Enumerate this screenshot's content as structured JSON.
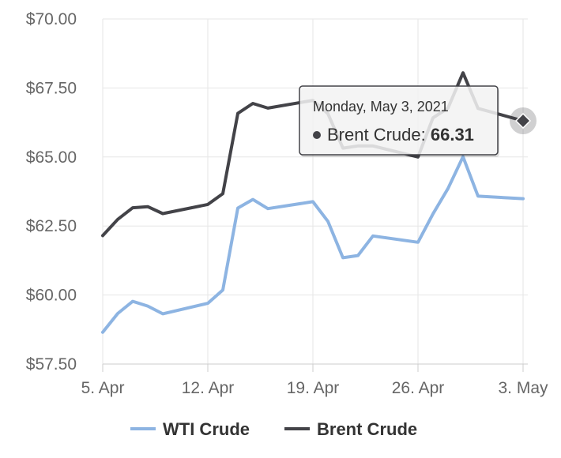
{
  "chart_data": {
    "type": "line",
    "x": [
      "2021-04-05",
      "2021-04-06",
      "2021-04-07",
      "2021-04-08",
      "2021-04-09",
      "2021-04-12",
      "2021-04-13",
      "2021-04-14",
      "2021-04-15",
      "2021-04-16",
      "2021-04-19",
      "2021-04-20",
      "2021-04-21",
      "2021-04-22",
      "2021-04-23",
      "2021-04-26",
      "2021-04-27",
      "2021-04-28",
      "2021-04-29",
      "2021-04-30",
      "2021-05-03"
    ],
    "x_tick_labels": [
      "5. Apr",
      "12. Apr",
      "19. Apr",
      "26. Apr",
      "3. May"
    ],
    "x_tick_dates": [
      "2021-04-05",
      "2021-04-12",
      "2021-04-19",
      "2021-04-26",
      "2021-05-03"
    ],
    "y_tick_labels": [
      "$57.50",
      "$60.00",
      "$62.50",
      "$65.00",
      "$67.50",
      "$70.00"
    ],
    "y_tick_values": [
      57.5,
      60.0,
      62.5,
      65.0,
      67.5,
      70.0
    ],
    "ylim": [
      57.5,
      70.0
    ],
    "grid": true,
    "legend_position": "bottom",
    "series": [
      {
        "name": "WTI Crude",
        "color": "#8db4e2",
        "values": [
          58.65,
          59.33,
          59.77,
          59.6,
          59.32,
          59.7,
          60.18,
          63.15,
          63.46,
          63.13,
          63.38,
          62.67,
          61.35,
          61.43,
          62.14,
          61.91,
          62.94,
          63.86,
          65.01,
          63.58,
          63.49
        ]
      },
      {
        "name": "Brent Crude",
        "color": "#434348",
        "values": [
          62.15,
          62.74,
          63.16,
          63.2,
          62.95,
          63.28,
          63.67,
          66.58,
          66.94,
          66.77,
          67.05,
          66.57,
          65.32,
          65.4,
          65.4,
          65.0,
          66.42,
          66.77,
          68.05,
          66.76,
          66.31
        ]
      }
    ],
    "tooltip": {
      "date_label": "Monday, May 3, 2021",
      "series_name": "Brent Crude",
      "value_text": "66.31",
      "point_index": 20
    }
  }
}
